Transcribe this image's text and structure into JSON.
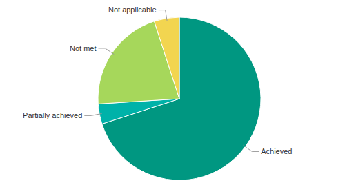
{
  "chart_data": {
    "type": "pie",
    "categories": [
      "Achieved",
      "Partially achieved",
      "Not met",
      "Not applicable"
    ],
    "values": [
      70,
      4,
      21,
      5
    ],
    "colors": [
      "#009781",
      "#00b2a9",
      "#a6d75b",
      "#f2d550"
    ]
  }
}
